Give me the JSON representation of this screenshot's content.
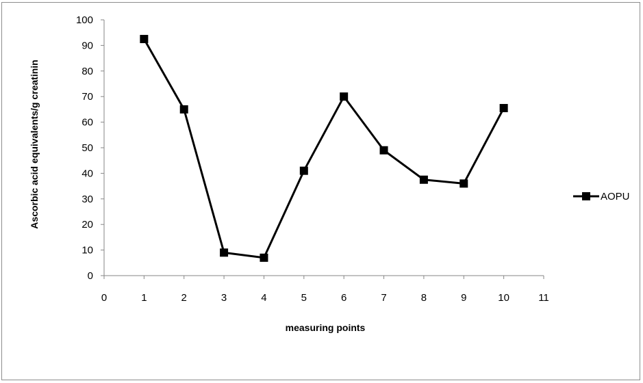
{
  "chart_data": {
    "type": "line",
    "title": "",
    "xlabel": "measuring points",
    "ylabel": "Ascorbic acid equivalents/g creatinin",
    "xlim": [
      0,
      11
    ],
    "ylim": [
      0,
      100
    ],
    "x_ticks": [
      0,
      1,
      2,
      3,
      4,
      5,
      6,
      7,
      8,
      9,
      10,
      11
    ],
    "y_ticks": [
      0,
      10,
      20,
      30,
      40,
      50,
      60,
      70,
      80,
      90,
      100
    ],
    "grid": false,
    "legend_position": "right",
    "series": [
      {
        "name": "AOPU",
        "color": "#000000",
        "marker": "square",
        "x": [
          1,
          2,
          3,
          4,
          5,
          6,
          7,
          8,
          9,
          10
        ],
        "values": [
          92.5,
          65,
          9,
          7,
          41,
          70,
          49,
          37.5,
          36,
          65.5
        ]
      }
    ]
  }
}
